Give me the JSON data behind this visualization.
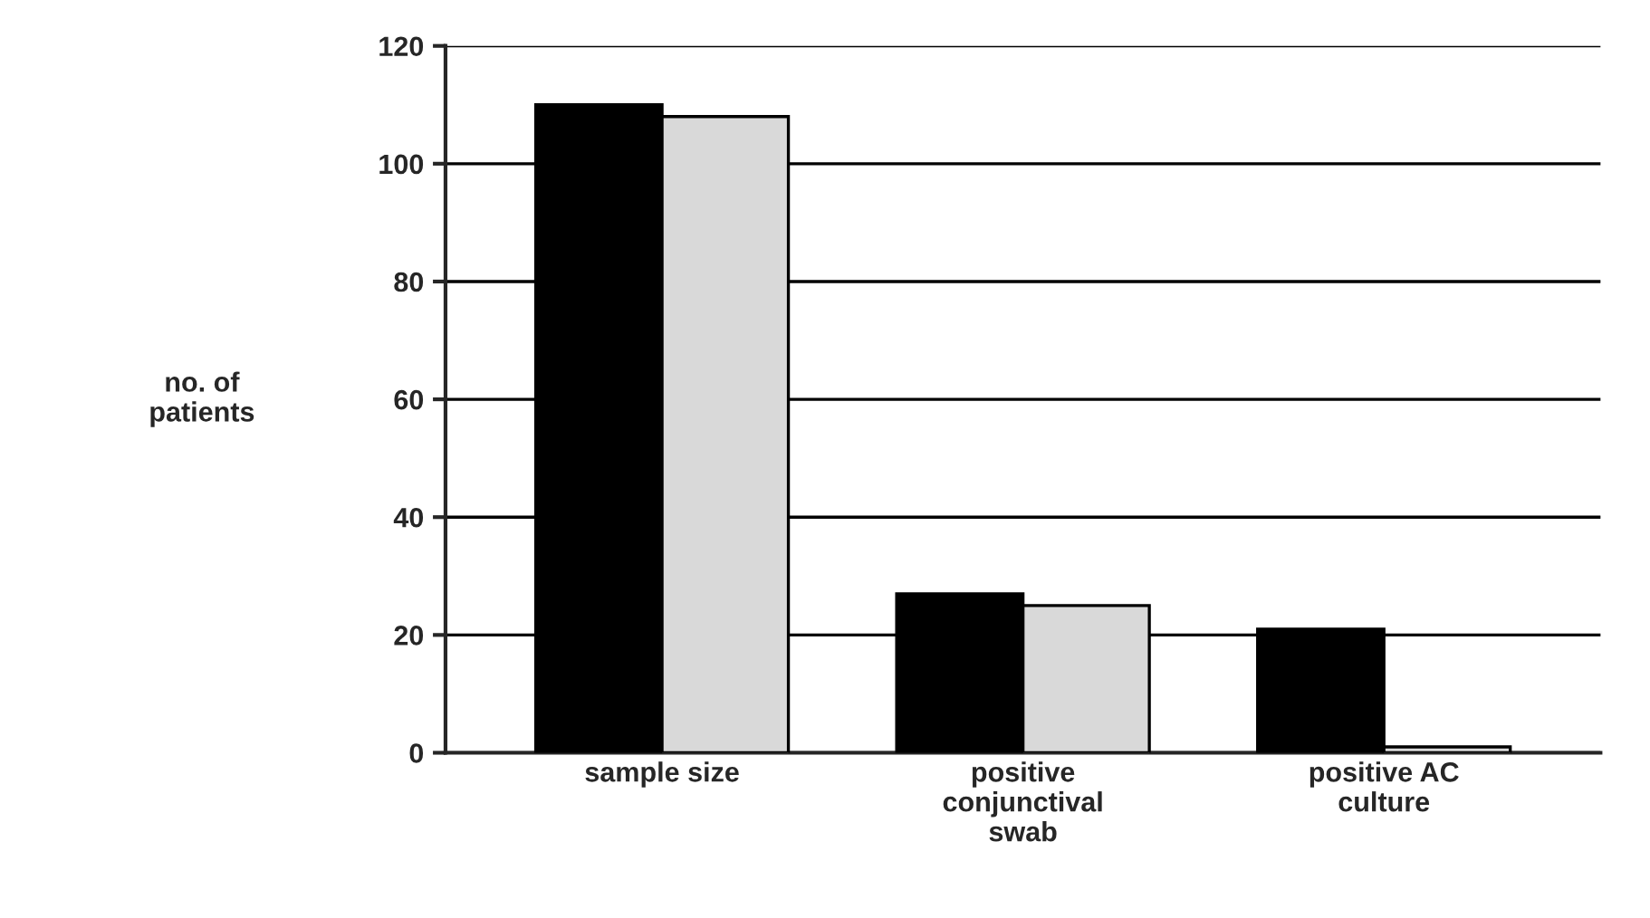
{
  "chart_data": {
    "type": "bar",
    "ylabel": "no. of\npatients",
    "categories": [
      "sample size",
      "positive\nconjunctival\nswab",
      "positive AC\nculture"
    ],
    "series": [
      {
        "color": "#000000",
        "values": [
          110,
          27,
          21
        ]
      },
      {
        "color": "#d9d9d9",
        "values": [
          108,
          25,
          1
        ]
      }
    ],
    "ylim": [
      0,
      120
    ],
    "yticks": [
      0,
      20,
      40,
      60,
      80,
      100,
      120
    ],
    "grid": "y"
  }
}
